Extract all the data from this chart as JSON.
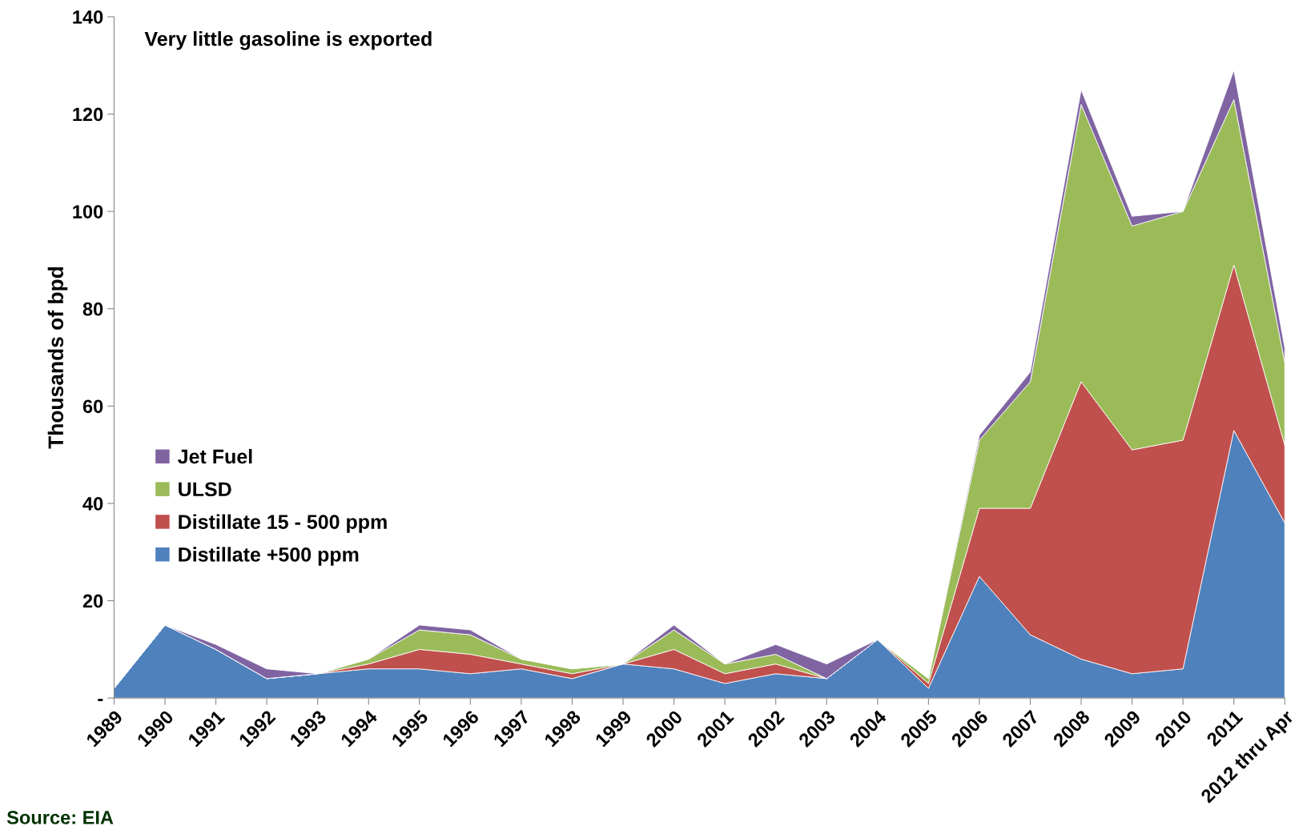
{
  "chart_data": {
    "type": "area",
    "stacked": true,
    "title": "Very little gasoline is exported",
    "ylabel": "Thousands of bpd",
    "categories": [
      "1989",
      "1990",
      "1991",
      "1992",
      "1993",
      "1994",
      "1995",
      "1996",
      "1997",
      "1998",
      "1999",
      "2000",
      "2001",
      "2002",
      "2003",
      "2004",
      "2005",
      "2006",
      "2007",
      "2008",
      "2009",
      "2010",
      "2011",
      "2012 thru Apr"
    ],
    "series": [
      {
        "name": "Distillate +500 ppm",
        "color": "#4f81bd",
        "values": [
          2,
          15,
          10,
          4,
          5,
          6,
          6,
          5,
          6,
          4,
          7,
          6,
          3,
          5,
          4,
          12,
          2,
          25,
          13,
          8,
          5,
          6,
          55,
          36
        ]
      },
      {
        "name": "Distillate 15 - 500 ppm",
        "color": "#c0504d",
        "values": [
          0,
          0,
          0,
          0,
          0,
          1,
          4,
          4,
          1,
          1,
          0,
          4,
          2,
          2,
          0,
          0,
          1,
          14,
          26,
          57,
          46,
          47,
          34,
          16
        ]
      },
      {
        "name": "ULSD",
        "color": "#9bbb59",
        "values": [
          0,
          0,
          0,
          0,
          0,
          1,
          4,
          4,
          1,
          1,
          0,
          4,
          2,
          2,
          0,
          0,
          1,
          14,
          26,
          57,
          46,
          47,
          34,
          17
        ]
      },
      {
        "name": "Jet Fuel",
        "color": "#8064a2",
        "values": [
          0,
          0,
          1,
          2,
          0,
          0,
          1,
          1,
          0,
          0,
          0,
          1,
          0,
          2,
          3,
          0,
          0,
          1,
          2,
          3,
          2,
          0,
          6,
          3
        ]
      }
    ],
    "ylim": [
      0,
      140
    ],
    "yticks": [
      {
        "value": 0,
        "label": "-"
      },
      20,
      40,
      60,
      80,
      100,
      120,
      140
    ],
    "grid": false,
    "legend": "left",
    "annotations": [
      "Source: EIA"
    ]
  }
}
